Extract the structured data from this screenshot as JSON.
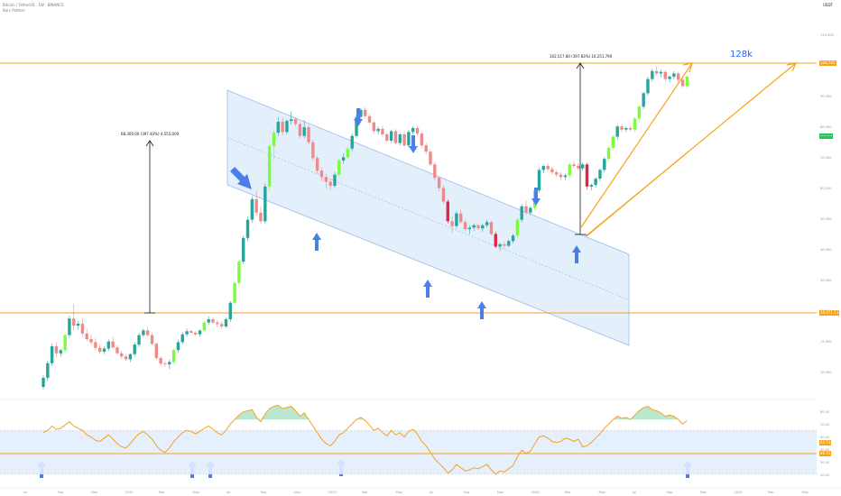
{
  "header": {
    "symbol_line": "Bitcoin / TetherUS · 1W · BINANCE",
    "sub_line": "Bars Pattern"
  },
  "currency": "USDT",
  "annotations": {
    "measure_left": "68,300.00 (397.83%) 4,555,000",
    "measure_right": "102,517.80 (397.83%) 10,251,790",
    "target_label": "128k"
  },
  "price_tags": {
    "upper_line": "128,700",
    "last_price": "~~~~",
    "lower_line": "19,071.11",
    "rsi_upper": "64.51",
    "rsi_lower": "46.51"
  },
  "axis": {
    "price_ticks": [
      "110,000",
      "100,000",
      "90,000",
      "80,000",
      "70,000",
      "60,000",
      "50,000",
      "40,000",
      "30,000",
      "20,000",
      "15,000",
      "10,000"
    ],
    "rsi_ticks": [
      "80.00",
      "70.00",
      "60.00",
      "40.00",
      "30.00",
      "20.00"
    ],
    "time_ticks": [
      "Jul",
      "Sep",
      "Nov",
      "2022",
      "Mar",
      "May",
      "Jul",
      "Sep",
      "Nov",
      "2023",
      "Mar",
      "May",
      "Jul",
      "Sep",
      "Nov",
      "2024",
      "Mar",
      "May",
      "Jul",
      "Sep",
      "Nov",
      "2025",
      "Mar",
      "May"
    ]
  },
  "colors": {
    "up": "#26a69a",
    "up_bright": "#7cfc3f",
    "down": "#ef8a8a",
    "down_strong": "#e0254a",
    "channel_fill": "#dbe9fb",
    "channel_line": "#90b4e6",
    "orange": "#f7a21b",
    "arrow": "#4a7fe8",
    "rsi_band": "#e3eefc",
    "label_blue": "#2962ff"
  },
  "chart_data": {
    "type": "candlestick",
    "title": "",
    "candles": [
      {
        "t": 0,
        "o": 20.5,
        "h": 23.5,
        "l": 19.8,
        "c": 22.8
      },
      {
        "t": 1,
        "o": 22.8,
        "h": 27.2,
        "l": 22.0,
        "c": 26.5
      },
      {
        "t": 2,
        "o": 26.5,
        "h": 31.5,
        "l": 25.8,
        "c": 30.8
      },
      {
        "t": 3,
        "o": 30.8,
        "h": 31.8,
        "l": 28.0,
        "c": 29.0
      },
      {
        "t": 4,
        "o": 29.0,
        "h": 30.2,
        "l": 28.2,
        "c": 29.8
      },
      {
        "t": 5,
        "o": 29.8,
        "h": 34.0,
        "l": 29.2,
        "c": 33.6
      },
      {
        "t": 6,
        "o": 33.6,
        "h": 38.5,
        "l": 32.8,
        "c": 37.8
      },
      {
        "t": 7,
        "o": 37.8,
        "h": 41.5,
        "l": 34.8,
        "c": 36.0
      },
      {
        "t": 8,
        "o": 36.0,
        "h": 37.2,
        "l": 35.0,
        "c": 36.5
      },
      {
        "t": 9,
        "o": 36.5,
        "h": 37.8,
        "l": 33.2,
        "c": 34.0
      },
      {
        "t": 10,
        "o": 34.0,
        "h": 35.2,
        "l": 32.0,
        "c": 32.6
      },
      {
        "t": 11,
        "o": 32.6,
        "h": 33.8,
        "l": 31.2,
        "c": 31.8
      },
      {
        "t": 12,
        "o": 31.8,
        "h": 32.8,
        "l": 29.8,
        "c": 30.4
      },
      {
        "t": 13,
        "o": 30.4,
        "h": 31.2,
        "l": 28.8,
        "c": 29.4
      },
      {
        "t": 14,
        "o": 29.4,
        "h": 30.8,
        "l": 28.8,
        "c": 30.2
      },
      {
        "t": 15,
        "o": 30.2,
        "h": 32.5,
        "l": 29.6,
        "c": 32.0
      },
      {
        "t": 16,
        "o": 32.0,
        "h": 33.2,
        "l": 30.0,
        "c": 30.5
      },
      {
        "t": 17,
        "o": 30.5,
        "h": 31.0,
        "l": 28.6,
        "c": 29.0
      },
      {
        "t": 18,
        "o": 29.0,
        "h": 29.6,
        "l": 27.6,
        "c": 28.2
      },
      {
        "t": 19,
        "o": 28.2,
        "h": 28.8,
        "l": 27.0,
        "c": 27.5
      },
      {
        "t": 20,
        "o": 27.5,
        "h": 29.0,
        "l": 26.8,
        "c": 28.8
      },
      {
        "t": 21,
        "o": 28.8,
        "h": 31.8,
        "l": 28.2,
        "c": 31.2
      },
      {
        "t": 22,
        "o": 31.2,
        "h": 34.2,
        "l": 30.6,
        "c": 33.6
      },
      {
        "t": 23,
        "o": 33.6,
        "h": 35.2,
        "l": 33.0,
        "c": 34.8
      },
      {
        "t": 24,
        "o": 34.8,
        "h": 35.6,
        "l": 33.2,
        "c": 33.6
      },
      {
        "t": 25,
        "o": 33.6,
        "h": 34.2,
        "l": 31.0,
        "c": 31.4
      },
      {
        "t": 26,
        "o": 31.4,
        "h": 31.8,
        "l": 27.4,
        "c": 27.8
      },
      {
        "t": 27,
        "o": 27.8,
        "h": 28.4,
        "l": 25.8,
        "c": 26.4
      },
      {
        "t": 28,
        "o": 26.4,
        "h": 27.0,
        "l": 25.6,
        "c": 26.2
      },
      {
        "t": 29,
        "o": 26.2,
        "h": 27.4,
        "l": 25.0,
        "c": 26.8
      },
      {
        "t": 30,
        "o": 26.8,
        "h": 30.2,
        "l": 26.2,
        "c": 29.8
      },
      {
        "t": 31,
        "o": 29.8,
        "h": 32.4,
        "l": 29.2,
        "c": 31.8
      },
      {
        "t": 32,
        "o": 31.8,
        "h": 34.4,
        "l": 31.2,
        "c": 33.8
      },
      {
        "t": 33,
        "o": 33.8,
        "h": 35.2,
        "l": 33.2,
        "c": 34.6
      },
      {
        "t": 34,
        "o": 34.6,
        "h": 35.0,
        "l": 33.8,
        "c": 34.2
      },
      {
        "t": 35,
        "o": 34.2,
        "h": 34.6,
        "l": 33.4,
        "c": 33.8
      },
      {
        "t": 36,
        "o": 33.8,
        "h": 35.0,
        "l": 33.2,
        "c": 34.8
      },
      {
        "t": 37,
        "o": 34.8,
        "h": 37.2,
        "l": 34.2,
        "c": 36.8
      },
      {
        "t": 38,
        "o": 36.8,
        "h": 38.4,
        "l": 36.2,
        "c": 37.6
      },
      {
        "t": 39,
        "o": 37.6,
        "h": 38.2,
        "l": 36.4,
        "c": 36.8
      },
      {
        "t": 40,
        "o": 36.8,
        "h": 37.4,
        "l": 35.6,
        "c": 36.4
      },
      {
        "t": 41,
        "o": 36.4,
        "h": 37.0,
        "l": 35.2,
        "c": 35.8
      },
      {
        "t": 42,
        "o": 35.8,
        "h": 38.0,
        "l": 35.4,
        "c": 37.6
      },
      {
        "t": 43,
        "o": 37.6,
        "h": 42.2,
        "l": 37.0,
        "c": 41.8
      },
      {
        "t": 44,
        "o": 41.8,
        "h": 47.2,
        "l": 41.2,
        "c": 46.8
      },
      {
        "t": 45,
        "o": 46.8,
        "h": 52.8,
        "l": 46.2,
        "c": 52.2
      },
      {
        "t": 46,
        "o": 52.2,
        "h": 58.8,
        "l": 51.6,
        "c": 58.2
      },
      {
        "t": 47,
        "o": 58.2,
        "h": 63.6,
        "l": 57.4,
        "c": 62.8
      },
      {
        "t": 48,
        "o": 62.8,
        "h": 68.8,
        "l": 62.0,
        "c": 68.0
      },
      {
        "t": 49,
        "o": 68.0,
        "h": 70.2,
        "l": 63.8,
        "c": 64.6
      },
      {
        "t": 50,
        "o": 64.6,
        "h": 66.2,
        "l": 61.8,
        "c": 62.4
      },
      {
        "t": 51,
        "o": 62.4,
        "h": 72.0,
        "l": 61.8,
        "c": 71.2
      },
      {
        "t": 52,
        "o": 71.2,
        "h": 82.0,
        "l": 70.4,
        "c": 81.4
      },
      {
        "t": 53,
        "o": 81.4,
        "h": 85.8,
        "l": 78.0,
        "c": 84.8
      },
      {
        "t": 54,
        "o": 84.8,
        "h": 88.8,
        "l": 84.0,
        "c": 87.6
      },
      {
        "t": 55,
        "o": 87.6,
        "h": 88.6,
        "l": 84.2,
        "c": 85.0
      },
      {
        "t": 56,
        "o": 85.0,
        "h": 88.2,
        "l": 84.4,
        "c": 87.8
      },
      {
        "t": 57,
        "o": 87.8,
        "h": 90.2,
        "l": 86.8,
        "c": 88.2
      },
      {
        "t": 58,
        "o": 88.2,
        "h": 88.8,
        "l": 86.4,
        "c": 87.0
      },
      {
        "t": 59,
        "o": 87.0,
        "h": 87.6,
        "l": 83.4,
        "c": 84.0
      },
      {
        "t": 60,
        "o": 84.0,
        "h": 88.0,
        "l": 83.4,
        "c": 86.2
      },
      {
        "t": 61,
        "o": 86.2,
        "h": 86.8,
        "l": 81.8,
        "c": 82.4
      },
      {
        "t": 62,
        "o": 82.4,
        "h": 83.0,
        "l": 77.8,
        "c": 78.4
      },
      {
        "t": 63,
        "o": 78.4,
        "h": 79.0,
        "l": 74.4,
        "c": 75.2
      },
      {
        "t": 64,
        "o": 75.2,
        "h": 76.0,
        "l": 72.6,
        "c": 73.6
      },
      {
        "t": 65,
        "o": 73.6,
        "h": 74.4,
        "l": 70.8,
        "c": 72.4
      },
      {
        "t": 66,
        "o": 72.4,
        "h": 73.2,
        "l": 70.4,
        "c": 71.4
      },
      {
        "t": 67,
        "o": 71.4,
        "h": 74.8,
        "l": 70.8,
        "c": 74.2
      },
      {
        "t": 68,
        "o": 74.2,
        "h": 78.4,
        "l": 73.6,
        "c": 77.8
      },
      {
        "t": 69,
        "o": 77.8,
        "h": 79.6,
        "l": 77.0,
        "c": 78.6
      },
      {
        "t": 70,
        "o": 78.6,
        "h": 81.4,
        "l": 78.0,
        "c": 80.8
      },
      {
        "t": 71,
        "o": 80.8,
        "h": 84.6,
        "l": 80.2,
        "c": 84.0
      },
      {
        "t": 72,
        "o": 84.0,
        "h": 89.4,
        "l": 83.4,
        "c": 88.8
      },
      {
        "t": 73,
        "o": 88.8,
        "h": 91.0,
        "l": 88.0,
        "c": 90.6
      },
      {
        "t": 74,
        "o": 90.6,
        "h": 91.2,
        "l": 88.4,
        "c": 89.0
      },
      {
        "t": 75,
        "o": 89.0,
        "h": 89.6,
        "l": 87.0,
        "c": 87.4
      },
      {
        "t": 76,
        "o": 87.4,
        "h": 87.8,
        "l": 84.6,
        "c": 85.2
      },
      {
        "t": 77,
        "o": 85.2,
        "h": 86.4,
        "l": 84.4,
        "c": 85.8
      },
      {
        "t": 78,
        "o": 85.8,
        "h": 86.6,
        "l": 83.8,
        "c": 84.4
      },
      {
        "t": 79,
        "o": 84.4,
        "h": 85.0,
        "l": 82.4,
        "c": 82.8
      },
      {
        "t": 80,
        "o": 82.8,
        "h": 85.6,
        "l": 82.2,
        "c": 85.2
      },
      {
        "t": 81,
        "o": 85.2,
        "h": 85.8,
        "l": 81.8,
        "c": 82.2
      },
      {
        "t": 82,
        "o": 82.2,
        "h": 84.8,
        "l": 81.6,
        "c": 84.4
      },
      {
        "t": 83,
        "o": 84.4,
        "h": 85.2,
        "l": 81.2,
        "c": 81.6
      },
      {
        "t": 84,
        "o": 81.6,
        "h": 85.6,
        "l": 81.0,
        "c": 85.0
      },
      {
        "t": 85,
        "o": 85.0,
        "h": 86.4,
        "l": 84.4,
        "c": 86.0
      },
      {
        "t": 86,
        "o": 86.0,
        "h": 86.6,
        "l": 84.0,
        "c": 84.6
      },
      {
        "t": 87,
        "o": 84.6,
        "h": 85.2,
        "l": 81.0,
        "c": 81.6
      },
      {
        "t": 88,
        "o": 81.6,
        "h": 82.2,
        "l": 79.4,
        "c": 80.0
      },
      {
        "t": 89,
        "o": 80.0,
        "h": 80.6,
        "l": 76.4,
        "c": 76.8
      },
      {
        "t": 90,
        "o": 76.8,
        "h": 77.4,
        "l": 72.8,
        "c": 73.4
      },
      {
        "t": 91,
        "o": 73.4,
        "h": 73.8,
        "l": 70.0,
        "c": 70.8
      },
      {
        "t": 92,
        "o": 70.8,
        "h": 71.6,
        "l": 66.8,
        "c": 67.4
      },
      {
        "t": 93,
        "o": 67.4,
        "h": 68.0,
        "l": 61.8,
        "c": 62.4
      },
      {
        "t": 94,
        "o": 62.4,
        "h": 63.6,
        "l": 59.6,
        "c": 61.2
      },
      {
        "t": 95,
        "o": 61.2,
        "h": 65.0,
        "l": 60.6,
        "c": 64.4
      },
      {
        "t": 96,
        "o": 64.4,
        "h": 65.2,
        "l": 61.8,
        "c": 62.2
      },
      {
        "t": 97,
        "o": 62.2,
        "h": 62.8,
        "l": 59.8,
        "c": 60.4
      },
      {
        "t": 98,
        "o": 60.4,
        "h": 61.4,
        "l": 59.2,
        "c": 60.8
      },
      {
        "t": 99,
        "o": 60.8,
        "h": 61.8,
        "l": 60.0,
        "c": 61.4
      },
      {
        "t": 100,
        "o": 61.4,
        "h": 62.0,
        "l": 60.2,
        "c": 60.6
      },
      {
        "t": 101,
        "o": 60.6,
        "h": 61.8,
        "l": 59.8,
        "c": 61.4
      },
      {
        "t": 102,
        "o": 61.4,
        "h": 62.8,
        "l": 60.8,
        "c": 62.2
      },
      {
        "t": 103,
        "o": 62.2,
        "h": 62.6,
        "l": 58.8,
        "c": 59.2
      },
      {
        "t": 104,
        "o": 59.2,
        "h": 59.8,
        "l": 55.6,
        "c": 56.0
      },
      {
        "t": 105,
        "o": 56.0,
        "h": 57.0,
        "l": 55.0,
        "c": 56.6
      },
      {
        "t": 106,
        "o": 56.6,
        "h": 57.2,
        "l": 55.4,
        "c": 56.2
      },
      {
        "t": 107,
        "o": 56.2,
        "h": 57.8,
        "l": 55.8,
        "c": 57.4
      },
      {
        "t": 108,
        "o": 57.4,
        "h": 59.2,
        "l": 56.8,
        "c": 58.8
      },
      {
        "t": 109,
        "o": 58.8,
        "h": 63.4,
        "l": 58.2,
        "c": 62.8
      },
      {
        "t": 110,
        "o": 62.8,
        "h": 66.8,
        "l": 62.2,
        "c": 66.2
      },
      {
        "t": 111,
        "o": 66.2,
        "h": 67.6,
        "l": 64.0,
        "c": 64.6
      },
      {
        "t": 112,
        "o": 64.6,
        "h": 66.2,
        "l": 64.0,
        "c": 65.8
      },
      {
        "t": 113,
        "o": 65.8,
        "h": 70.8,
        "l": 65.2,
        "c": 70.2
      },
      {
        "t": 114,
        "o": 70.2,
        "h": 76.0,
        "l": 69.6,
        "c": 75.4
      },
      {
        "t": 115,
        "o": 75.4,
        "h": 76.8,
        "l": 74.6,
        "c": 76.4
      },
      {
        "t": 116,
        "o": 76.4,
        "h": 77.0,
        "l": 75.0,
        "c": 75.6
      },
      {
        "t": 117,
        "o": 75.6,
        "h": 76.2,
        "l": 74.2,
        "c": 74.8
      },
      {
        "t": 118,
        "o": 74.8,
        "h": 75.4,
        "l": 73.6,
        "c": 74.2
      },
      {
        "t": 119,
        "o": 74.2,
        "h": 74.8,
        "l": 72.8,
        "c": 73.6
      },
      {
        "t": 120,
        "o": 73.6,
        "h": 74.4,
        "l": 72.8,
        "c": 74.0
      },
      {
        "t": 121,
        "o": 74.0,
        "h": 77.2,
        "l": 73.4,
        "c": 76.8
      },
      {
        "t": 122,
        "o": 76.8,
        "h": 77.6,
        "l": 75.8,
        "c": 76.4
      },
      {
        "t": 123,
        "o": 76.4,
        "h": 77.0,
        "l": 75.4,
        "c": 75.8
      },
      {
        "t": 124,
        "o": 75.8,
        "h": 77.2,
        "l": 75.2,
        "c": 76.8
      },
      {
        "t": 125,
        "o": 76.8,
        "h": 77.2,
        "l": 70.4,
        "c": 71.2
      },
      {
        "t": 126,
        "o": 71.2,
        "h": 72.0,
        "l": 70.2,
        "c": 71.6
      },
      {
        "t": 127,
        "o": 71.6,
        "h": 73.6,
        "l": 71.0,
        "c": 73.2
      },
      {
        "t": 128,
        "o": 73.2,
        "h": 75.8,
        "l": 72.6,
        "c": 75.4
      },
      {
        "t": 129,
        "o": 75.4,
        "h": 78.6,
        "l": 74.8,
        "c": 78.2
      },
      {
        "t": 130,
        "o": 78.2,
        "h": 81.4,
        "l": 77.6,
        "c": 81.0
      },
      {
        "t": 131,
        "o": 81.0,
        "h": 84.2,
        "l": 80.4,
        "c": 83.8
      },
      {
        "t": 132,
        "o": 83.8,
        "h": 86.8,
        "l": 83.2,
        "c": 86.4
      },
      {
        "t": 133,
        "o": 86.4,
        "h": 87.0,
        "l": 85.0,
        "c": 85.6
      },
      {
        "t": 134,
        "o": 85.6,
        "h": 86.4,
        "l": 85.0,
        "c": 86.0
      },
      {
        "t": 135,
        "o": 86.0,
        "h": 86.6,
        "l": 85.2,
        "c": 85.6
      },
      {
        "t": 136,
        "o": 85.6,
        "h": 88.8,
        "l": 85.0,
        "c": 88.4
      },
      {
        "t": 137,
        "o": 88.4,
        "h": 91.8,
        "l": 87.8,
        "c": 91.4
      },
      {
        "t": 138,
        "o": 91.4,
        "h": 95.2,
        "l": 90.8,
        "c": 94.8
      },
      {
        "t": 139,
        "o": 94.8,
        "h": 99.0,
        "l": 94.2,
        "c": 98.4
      },
      {
        "t": 140,
        "o": 98.4,
        "h": 101.0,
        "l": 97.8,
        "c": 100.4
      },
      {
        "t": 141,
        "o": 100.4,
        "h": 101.6,
        "l": 99.2,
        "c": 99.8
      },
      {
        "t": 142,
        "o": 99.8,
        "h": 100.8,
        "l": 98.8,
        "c": 100.2
      },
      {
        "t": 143,
        "o": 100.2,
        "h": 100.6,
        "l": 97.8,
        "c": 98.4
      },
      {
        "t": 144,
        "o": 98.4,
        "h": 99.4,
        "l": 97.6,
        "c": 99.0
      },
      {
        "t": 145,
        "o": 99.0,
        "h": 100.4,
        "l": 98.4,
        "c": 99.8
      },
      {
        "t": 146,
        "o": 99.8,
        "h": 100.2,
        "l": 97.6,
        "c": 98.2
      },
      {
        "t": 147,
        "o": 98.2,
        "h": 99.0,
        "l": 96.2,
        "c": 96.6
      },
      {
        "t": 148,
        "o": 96.6,
        "h": 99.6,
        "l": 96.0,
        "c": 99.0
      }
    ],
    "rsi": [
      68,
      70,
      74,
      71,
      72,
      75,
      78,
      74,
      72,
      70,
      66,
      64,
      61,
      60,
      63,
      66,
      62,
      58,
      55,
      54,
      58,
      63,
      67,
      69,
      66,
      62,
      56,
      52,
      50,
      54,
      60,
      64,
      68,
      70,
      69,
      67,
      69,
      72,
      74,
      71,
      68,
      66,
      70,
      76,
      80,
      84,
      87,
      88,
      89,
      82,
      78,
      85,
      90,
      92,
      93,
      90,
      91,
      92,
      88,
      83,
      86,
      80,
      74,
      68,
      62,
      58,
      56,
      60,
      66,
      68,
      72,
      76,
      80,
      82,
      79,
      75,
      70,
      72,
      68,
      65,
      70,
      66,
      68,
      64,
      69,
      71,
      67,
      60,
      56,
      50,
      44,
      40,
      36,
      31,
      34,
      39,
      36,
      33,
      34,
      36,
      35,
      37,
      39,
      34,
      30,
      33,
      32,
      35,
      38,
      46,
      52,
      49,
      51,
      58,
      64,
      65,
      63,
      60,
      59,
      60,
      63,
      62,
      60,
      62,
      55,
      56,
      59,
      63,
      67,
      72,
      76,
      80,
      83,
      81,
      82,
      80,
      84,
      88,
      91,
      92,
      89,
      88,
      86,
      83,
      84,
      83,
      80,
      76,
      79
    ],
    "levels": {
      "upper": 128700,
      "lower": 19071.11,
      "rsi_upper": 64.51,
      "rsi_lower": 46.51
    }
  }
}
